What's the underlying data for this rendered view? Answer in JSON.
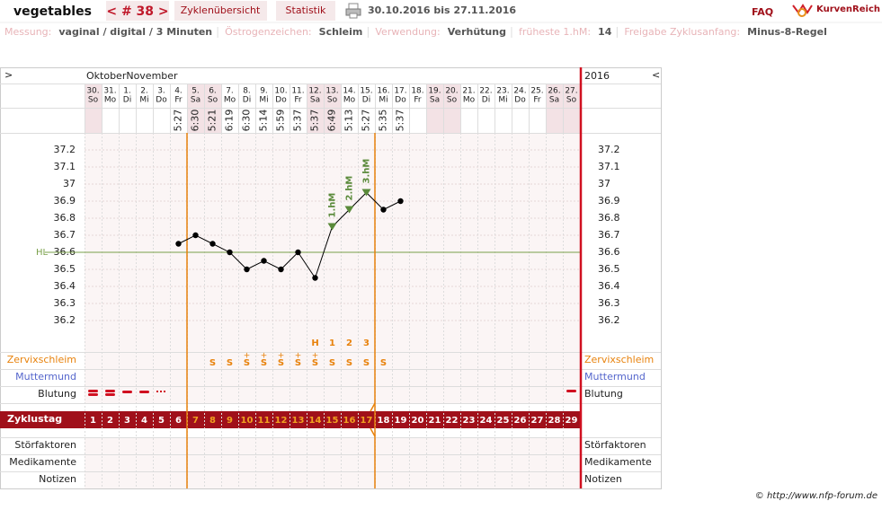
{
  "header": {
    "user": "vegetables",
    "cycle_nav": "< # 38 >",
    "tabs": [
      "Zyklenübersicht",
      "Statistik"
    ],
    "period": "30.10.2016 bis 27.11.2016",
    "faq": "FAQ",
    "brand": "KurvenReich"
  },
  "info": [
    {
      "label": "Messung:",
      "value": "vaginal / digital / 3 Minuten"
    },
    {
      "label": "Östrogenzeichen:",
      "value": "Schleim"
    },
    {
      "label": "Verwendung:",
      "value": "Verhütung"
    },
    {
      "label": "früheste 1.hM:",
      "value": "14"
    },
    {
      "label": "Freigabe Zyklusanfang:",
      "value": "Minus-8-Regel"
    }
  ],
  "chart_data": {
    "type": "line",
    "nav_left": ">",
    "nav_right": "<",
    "months": "OktoberNovember",
    "year": "2016",
    "categories": [
      1,
      2,
      3,
      4,
      5,
      6,
      7,
      8,
      9,
      10,
      11,
      12,
      13,
      14,
      15,
      16,
      17,
      18,
      19,
      20,
      21,
      22,
      23,
      24,
      25,
      26,
      27,
      28,
      29
    ],
    "dates": [
      "30.",
      "31.",
      "1.",
      "2.",
      "3.",
      "4.",
      "5.",
      "6.",
      "7.",
      "8.",
      "9.",
      "10.",
      "11.",
      "12.",
      "13.",
      "14.",
      "15.",
      "16.",
      "17.",
      "18.",
      "19.",
      "20.",
      "21.",
      "22.",
      "23.",
      "24.",
      "25.",
      "26.",
      "27."
    ],
    "weekdays": [
      "So",
      "Mo",
      "Di",
      "Mi",
      "Do",
      "Fr",
      "Sa",
      "So",
      "Mo",
      "Di",
      "Mi",
      "Do",
      "Fr",
      "Sa",
      "So",
      "Mo",
      "Di",
      "Mi",
      "Do",
      "Fr",
      "Sa",
      "So",
      "Mo",
      "Di",
      "Mi",
      "Do",
      "Fr",
      "Sa",
      "So"
    ],
    "times": [
      null,
      null,
      null,
      null,
      null,
      "5:27",
      "6:30",
      "5:21",
      "6:19",
      "6:30",
      "5:14",
      "5:59",
      "5:37",
      "5:37",
      "6:49",
      "5:13",
      "5:27",
      "5:35",
      "5:37",
      null,
      null,
      null,
      null,
      null,
      null,
      null,
      null,
      null,
      null
    ],
    "values": [
      null,
      null,
      null,
      null,
      null,
      36.65,
      36.7,
      36.65,
      36.6,
      36.5,
      36.55,
      36.5,
      36.6,
      36.45,
      36.75,
      36.85,
      36.95,
      36.85,
      36.9,
      null,
      null,
      null,
      null,
      null,
      null,
      null,
      null,
      null,
      null
    ],
    "color": "#000000",
    "peak_color": "#5a8a3a",
    "ylim": [
      36.0,
      37.3
    ],
    "yticks": [
      36.2,
      36.3,
      36.4,
      36.5,
      36.6,
      36.7,
      36.8,
      36.9,
      37,
      37.1,
      37.2
    ],
    "grid": true,
    "hl": {
      "label": "HL",
      "value": 36.6,
      "color": "#7aa04a"
    },
    "peak_labels": [
      null,
      null,
      null,
      null,
      null,
      null,
      null,
      null,
      null,
      null,
      null,
      null,
      null,
      null,
      "1.hM",
      "2.hM",
      "3.hM",
      null,
      null,
      null,
      null,
      null,
      null,
      null,
      null,
      null,
      null,
      null,
      null
    ],
    "count_labels": [
      null,
      null,
      null,
      null,
      null,
      null,
      null,
      null,
      null,
      null,
      null,
      null,
      null,
      "H",
      "1",
      "2",
      "3",
      null,
      null,
      null,
      null,
      null,
      null,
      null,
      null,
      null,
      null,
      null,
      null
    ],
    "mucus": [
      null,
      null,
      null,
      null,
      null,
      null,
      null,
      "S",
      "S",
      "S",
      "S",
      "S",
      "S",
      "S",
      "S",
      "S",
      "S",
      "S",
      null,
      null,
      null,
      null,
      null,
      null,
      null,
      null,
      null,
      null,
      null
    ],
    "mucus_plus": [
      null,
      null,
      null,
      null,
      null,
      null,
      null,
      null,
      null,
      "+",
      "+",
      "+",
      "+",
      "+",
      null,
      null,
      null,
      null,
      null,
      null,
      null,
      null,
      null,
      null,
      null,
      null,
      null,
      null,
      null
    ],
    "row_labels": {
      "mucus": "Zervixschleim",
      "cervix": "Muttermund",
      "bleeding": "Blutung",
      "cycle_day": "Zyklustag",
      "disturbances": "Störfaktoren",
      "medication": "Medikamente",
      "notes": "Notizen"
    }
  },
  "footer": "© http://www.nfp-forum.de"
}
